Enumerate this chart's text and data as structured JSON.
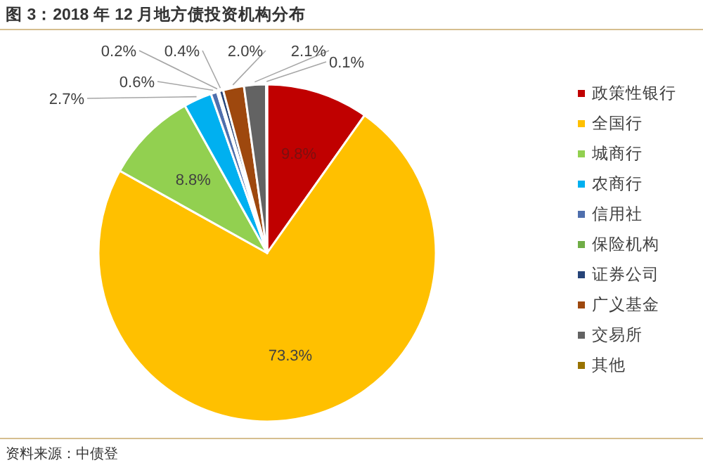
{
  "chart_data": {
    "type": "pie",
    "title": "图 3：2018 年 12 月地方债投资机构分布",
    "categories": [
      "政策性银行",
      "全国行",
      "城商行",
      "农商行",
      "信用社",
      "保险机构",
      "证券公司",
      "广义基金",
      "交易所",
      "其他"
    ],
    "values": [
      9.8,
      73.3,
      8.8,
      2.7,
      0.6,
      0.2,
      0.4,
      2.0,
      2.1,
      0.1
    ],
    "colors": [
      "#c00000",
      "#ffc000",
      "#92d050",
      "#00b0f0",
      "#4f6fad",
      "#70ad47",
      "#264478",
      "#9e480e",
      "#636363",
      "#997300"
    ],
    "data_labels": true,
    "value_labels": [
      "9.8%",
      "73.3%",
      "8.8%",
      "2.7%",
      "0.6%",
      "0.2%",
      "0.4%",
      "2.0%",
      "2.1%",
      "0.1%"
    ],
    "legend": "right",
    "annotations": [
      "资料来源：中债登"
    ]
  }
}
